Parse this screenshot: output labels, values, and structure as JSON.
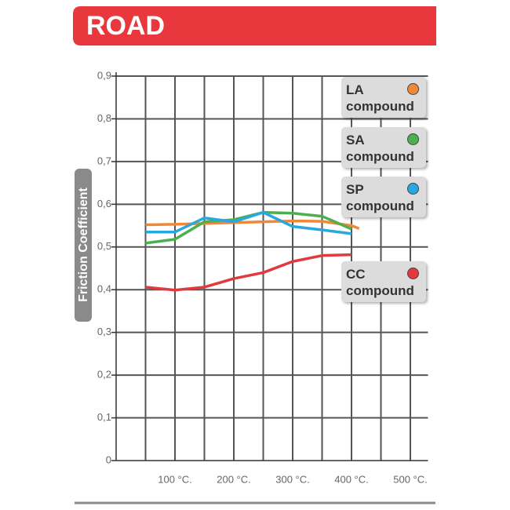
{
  "chart_data": {
    "type": "line",
    "title": "ROAD",
    "ylabel": "Friction Coefficient",
    "xlim": [
      0,
      530
    ],
    "ylim": [
      0,
      0.9
    ],
    "xticks": [
      {
        "value": 100,
        "label": "100 °C."
      },
      {
        "value": 200,
        "label": "200 °C."
      },
      {
        "value": 300,
        "label": "300 °C."
      },
      {
        "value": 400,
        "label": "400 °C."
      },
      {
        "value": 500,
        "label": "500 °C."
      }
    ],
    "xminorticks": [
      50,
      150,
      250,
      350,
      450
    ],
    "yticks": [
      0,
      {
        "value": 0.1,
        "label": "0,1"
      },
      {
        "value": 0.2,
        "label": "0,2"
      },
      {
        "value": 0.3,
        "label": "0,3"
      },
      {
        "value": 0.4,
        "label": "0,4"
      },
      {
        "value": 0.5,
        "label": "0,5"
      },
      {
        "value": 0.6,
        "label": "0,6"
      },
      {
        "value": 0.7,
        "label": "0,7"
      },
      {
        "value": 0.8,
        "label": "0,8"
      },
      {
        "value": 0.9,
        "label": "0,9"
      }
    ],
    "grid": true,
    "series": [
      {
        "name": "LA compound",
        "color": "#f0883a",
        "x": [
          50,
          100,
          150,
          200,
          250,
          300,
          350,
          400,
          413
        ],
        "values": [
          0.552,
          0.553,
          0.555,
          0.557,
          0.559,
          0.561,
          0.56,
          0.55,
          0.543
        ]
      },
      {
        "name": "SA compound",
        "color": "#4caf50",
        "x": [
          50,
          100,
          150,
          200,
          250,
          300,
          350,
          400
        ],
        "values": [
          0.509,
          0.518,
          0.559,
          0.564,
          0.581,
          0.579,
          0.572,
          0.542
        ]
      },
      {
        "name": "SP compound",
        "color": "#29a8e0",
        "x": [
          50,
          100,
          150,
          200,
          250,
          300,
          350,
          400
        ],
        "values": [
          0.535,
          0.535,
          0.568,
          0.559,
          0.581,
          0.548,
          0.54,
          0.531
        ]
      },
      {
        "name": "CC compound",
        "color": "#e03a3e",
        "x": [
          50,
          100,
          150,
          200,
          250,
          300,
          350,
          400
        ],
        "values": [
          0.406,
          0.399,
          0.406,
          0.426,
          0.44,
          0.466,
          0.48,
          0.482
        ]
      }
    ]
  }
}
